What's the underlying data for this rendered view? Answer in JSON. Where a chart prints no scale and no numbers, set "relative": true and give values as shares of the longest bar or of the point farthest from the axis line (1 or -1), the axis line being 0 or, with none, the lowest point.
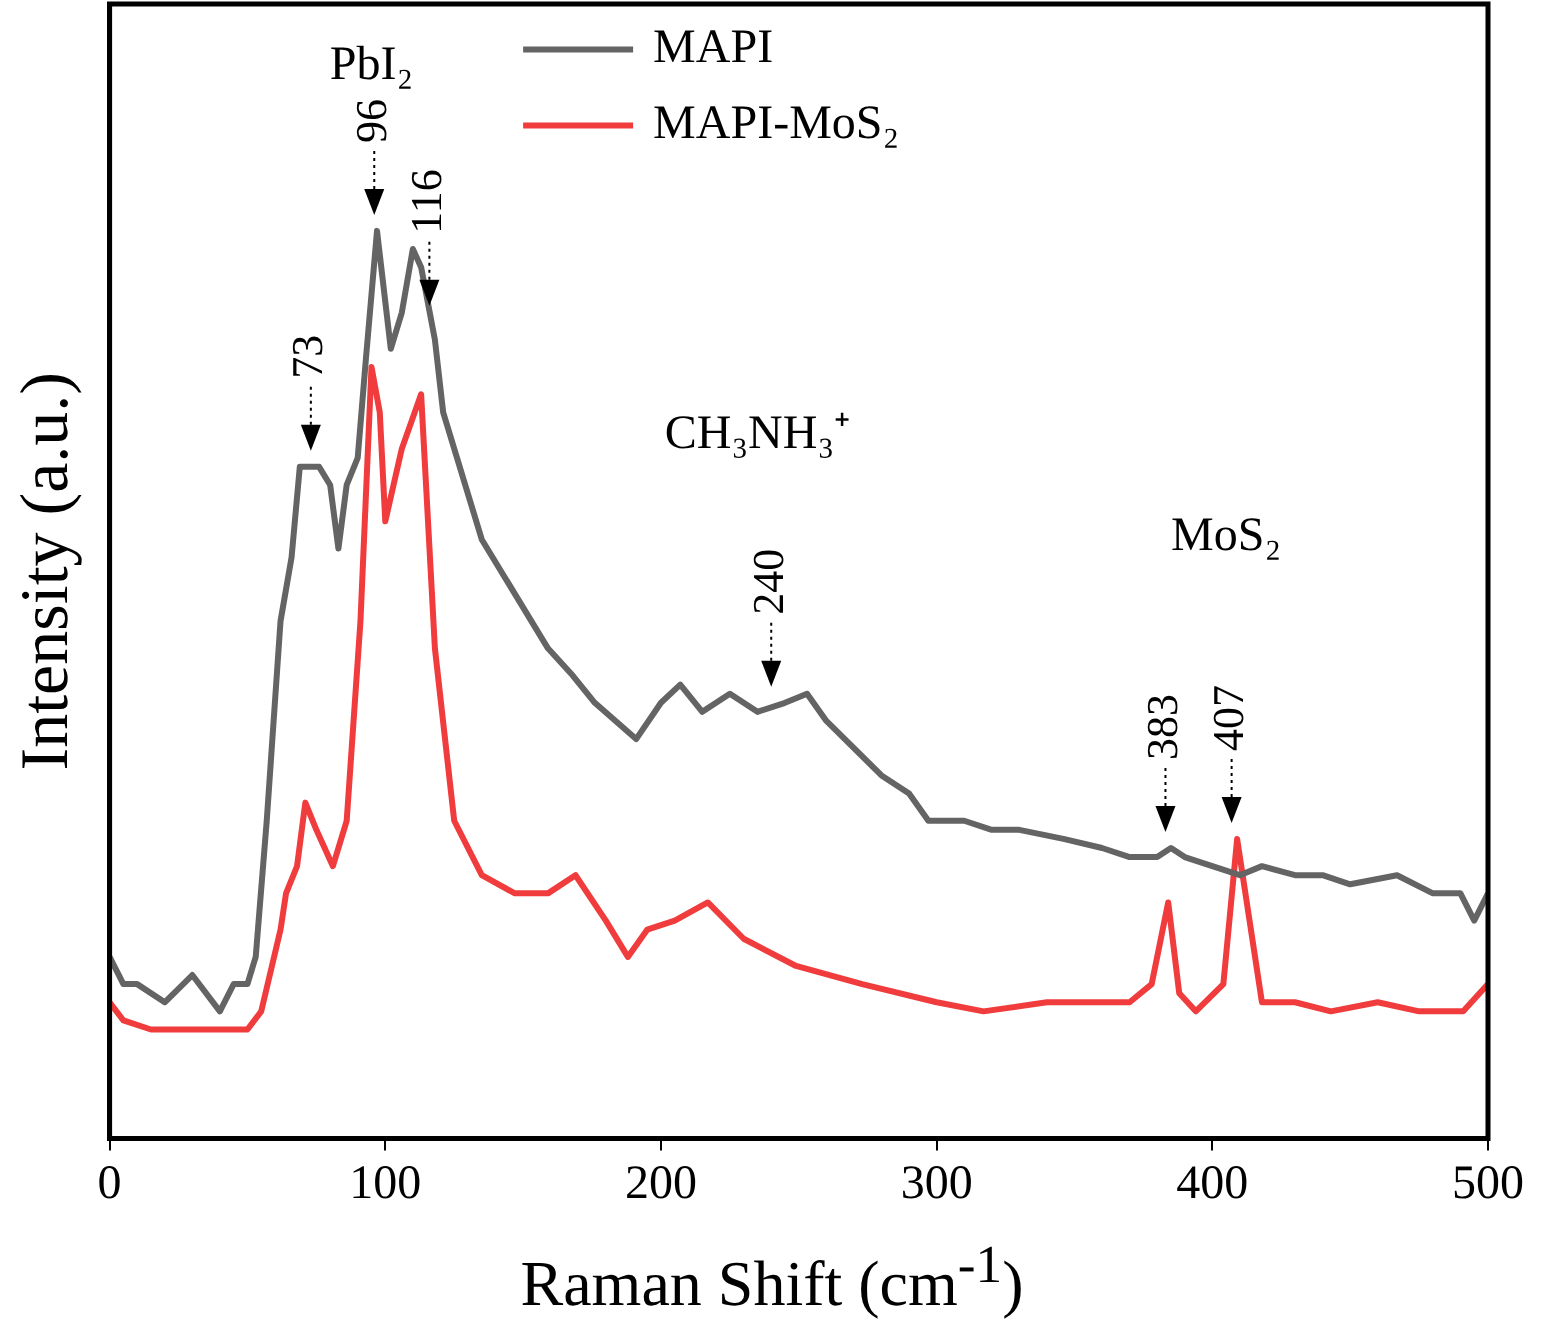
{
  "chart_data": {
    "type": "line",
    "relative": true,
    "xlabel": "Raman Shift (cm$^{-1}$)",
    "ylabel": "Intensity (a.u.)",
    "xlim": [
      0,
      500
    ],
    "xticks": [
      0,
      100,
      200,
      300,
      400,
      500
    ],
    "grid": false,
    "legend": "top",
    "marker": "none",
    "line_style": "solid",
    "series": [
      {
        "name": "MAPI",
        "color": "#646464",
        "x": [
          0,
          5,
          10,
          20,
          30,
          40,
          45,
          50,
          53,
          57,
          62,
          66,
          69,
          73,
          76,
          80,
          83,
          86,
          90,
          93,
          97,
          102,
          106,
          110,
          113,
          118,
          121,
          128,
          135,
          147,
          159,
          168,
          176,
          191,
          200,
          207,
          215,
          225,
          235,
          245,
          253,
          260,
          270,
          280,
          290,
          297,
          310,
          320,
          330,
          346,
          360,
          370,
          380,
          385,
          390,
          400,
          410,
          418,
          430,
          440,
          450,
          467,
          480,
          490,
          495,
          500
        ],
        "values": [
          0.2,
          0.17,
          0.17,
          0.15,
          0.18,
          0.14,
          0.17,
          0.17,
          0.2,
          0.35,
          0.57,
          0.64,
          0.74,
          0.74,
          0.74,
          0.72,
          0.65,
          0.72,
          0.75,
          0.86,
          1,
          0.87,
          0.91,
          0.98,
          0.96,
          0.88,
          0.8,
          0.73,
          0.66,
          0.6,
          0.54,
          0.51,
          0.48,
          0.44,
          0.48,
          0.5,
          0.47,
          0.49,
          0.47,
          0.48,
          0.49,
          0.46,
          0.43,
          0.4,
          0.38,
          0.35,
          0.35,
          0.34,
          0.34,
          0.33,
          0.32,
          0.31,
          0.31,
          0.32,
          0.31,
          0.3,
          0.29,
          0.3,
          0.29,
          0.29,
          0.28,
          0.29,
          0.27,
          0.27,
          0.24,
          0.27
        ]
      },
      {
        "name": "MAPI-MoS₂",
        "color": "#f03c3c",
        "x": [
          0,
          5,
          15,
          25,
          35,
          45,
          50,
          55,
          62,
          64,
          68,
          71,
          75,
          81,
          86,
          91,
          95,
          98,
          100,
          106,
          113,
          118,
          125,
          135,
          147,
          159,
          169,
          180,
          188,
          195,
          205,
          217,
          230,
          249,
          273,
          300,
          317,
          340,
          370,
          378,
          384,
          388,
          394,
          404,
          409,
          414,
          418,
          430,
          443,
          460,
          475,
          491,
          500
        ],
        "values": [
          0.15,
          0.13,
          0.12,
          0.12,
          0.12,
          0.12,
          0.12,
          0.14,
          0.23,
          0.27,
          0.3,
          0.37,
          0.34,
          0.3,
          0.35,
          0.57,
          0.85,
          0.8,
          0.68,
          0.76,
          0.82,
          0.54,
          0.35,
          0.29,
          0.27,
          0.27,
          0.29,
          0.24,
          0.2,
          0.23,
          0.24,
          0.26,
          0.22,
          0.19,
          0.17,
          0.15,
          0.14,
          0.15,
          0.15,
          0.17,
          0.26,
          0.16,
          0.14,
          0.17,
          0.33,
          0.23,
          0.15,
          0.15,
          0.14,
          0.15,
          0.14,
          0.14,
          0.17
        ]
      }
    ],
    "annotations": [
      {
        "text": "73",
        "x": 73,
        "y": 0.74
      },
      {
        "text": "96",
        "x": 96,
        "y": 1
      },
      {
        "text": "116",
        "x": 116,
        "y": 0.9
      },
      {
        "text": "240",
        "x": 240,
        "y": 0.48
      },
      {
        "text": "383",
        "x": 383,
        "y": 0.32
      },
      {
        "text": "407",
        "x": 407,
        "y": 0.33
      },
      "PbI₂",
      "CH₃NH₃⁺",
      "MoS₂"
    ]
  }
}
